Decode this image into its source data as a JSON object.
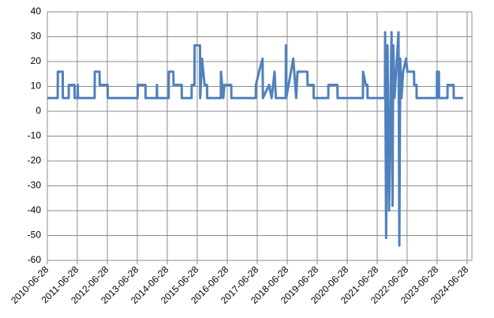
{
  "chart_data": {
    "type": "line",
    "color": "#4f81bd",
    "grid": true,
    "x": [
      "2010-06-28",
      "2010-11-01",
      "2010-11-03",
      "2011-01-01",
      "2011-01-03",
      "2011-03-15",
      "2011-03-17",
      "2011-05-25",
      "2011-05-27",
      "2011-07-01",
      "2011-07-03",
      "2011-07-06",
      "2012-01-25",
      "2012-01-27",
      "2012-03-25",
      "2012-03-27",
      "2012-07-01",
      "2012-07-03",
      "2013-07-01",
      "2013-07-03",
      "2013-10-05",
      "2013-10-07",
      "2014-02-20",
      "2014-02-22",
      "2014-02-25",
      "2014-07-15",
      "2014-07-17",
      "2014-09-10",
      "2014-09-12",
      "2014-12-20",
      "2014-12-22",
      "2015-04-20",
      "2015-04-22",
      "2015-05-25",
      "2015-05-27",
      "2015-08-01",
      "2015-08-03",
      "2015-08-25",
      "2015-09-25",
      "2015-10-25",
      "2015-10-27",
      "2016-04-10",
      "2016-04-12",
      "2016-05-10",
      "2016-05-25",
      "2016-08-15",
      "2016-08-17",
      "2017-06-10",
      "2017-06-12",
      "2017-07-20",
      "2017-09-01",
      "2017-09-05",
      "2017-11-20",
      "2017-12-20",
      "2018-01-25",
      "2018-02-10",
      "2018-06-10",
      "2018-06-12",
      "2018-06-16",
      "2018-09-10",
      "2018-10-15",
      "2018-11-01",
      "2019-03-01",
      "2019-03-03",
      "2019-05-15",
      "2019-05-17",
      "2019-11-10",
      "2019-11-12",
      "2020-03-01",
      "2020-03-03",
      "2021-01-05",
      "2021-01-07",
      "2021-02-10",
      "2021-03-01",
      "2021-03-03",
      "2021-10-01",
      "2021-10-03",
      "2021-10-15",
      "2021-11-01",
      "2021-11-20",
      "2021-12-20",
      "2022-01-01",
      "2022-01-10",
      "2022-01-25",
      "2022-03-15",
      "2022-03-25",
      "2022-04-05",
      "2022-04-20",
      "2022-05-10",
      "2022-06-15",
      "2022-07-01",
      "2022-09-20",
      "2022-09-22",
      "2022-10-20",
      "2022-10-22",
      "2023-06-25",
      "2023-06-27",
      "2023-07-20",
      "2023-07-22",
      "2023-11-01",
      "2023-11-03",
      "2024-01-15",
      "2024-01-17",
      "2024-05-10"
    ],
    "values": [
      5.3,
      5.3,
      15.9,
      15.9,
      5.3,
      5.3,
      10.6,
      10.6,
      5.3,
      5.3,
      10.6,
      5.3,
      5.3,
      15.9,
      15.9,
      10.6,
      10.6,
      5.3,
      5.3,
      10.6,
      10.6,
      5.3,
      5.3,
      10.6,
      5.3,
      5.3,
      15.9,
      15.9,
      10.6,
      10.6,
      5.3,
      5.3,
      10.6,
      10.6,
      26.5,
      26.5,
      5.3,
      21.2,
      10.6,
      10.6,
      5.3,
      5.3,
      15.9,
      5.3,
      10.6,
      10.6,
      5.3,
      5.3,
      10.6,
      15.9,
      21.2,
      5.3,
      10.6,
      5.3,
      15.9,
      5.3,
      5.3,
      26.5,
      5.3,
      21.2,
      5.3,
      15.9,
      15.9,
      10.6,
      10.6,
      5.3,
      5.3,
      10.6,
      10.6,
      5.3,
      5.3,
      15.9,
      10.6,
      10.6,
      5.3,
      5.3,
      31.8,
      -51,
      26.5,
      -40,
      31.8,
      -38,
      26.5,
      5.3,
      31.8,
      -54,
      21.2,
      5.3,
      15.9,
      21.2,
      15.9,
      15.9,
      10.6,
      10.6,
      5.3,
      5.3,
      15.9,
      15.9,
      5.3,
      5.3,
      10.6,
      10.6,
      5.3,
      5.3
    ],
    "xlim": [
      "2010-06-28",
      "2024-08-25"
    ],
    "xticks": [
      "2010-06-28",
      "2011-06-28",
      "2012-06-28",
      "2013-06-28",
      "2014-06-28",
      "2015-06-28",
      "2016-06-28",
      "2017-06-28",
      "2018-06-28",
      "2019-06-28",
      "2020-06-28",
      "2021-06-28",
      "2022-06-28",
      "2023-06-28",
      "2024-06-28"
    ],
    "ylim": [
      -60,
      40
    ],
    "yticks": [
      -60,
      -50,
      -40,
      -30,
      -20,
      -10,
      0,
      10,
      20,
      30,
      40
    ]
  }
}
